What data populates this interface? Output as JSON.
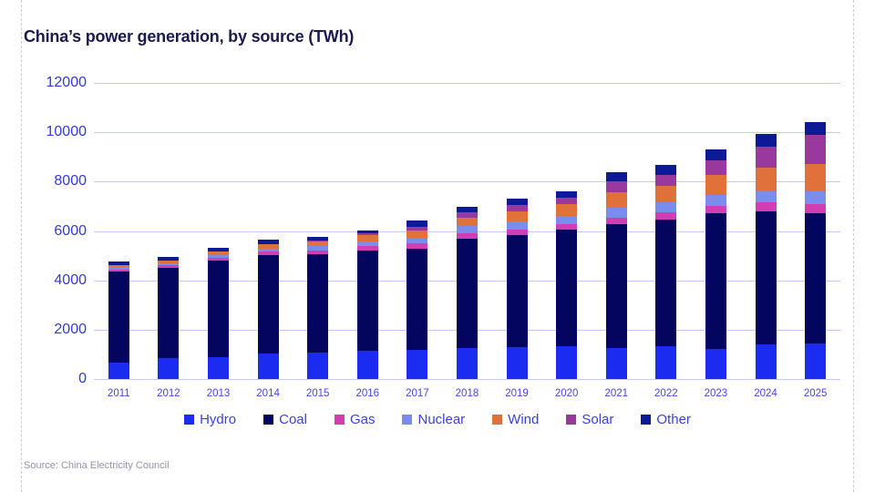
{
  "title": "China’s power generation, by source (TWh)",
  "source": {
    "text": "Source: China Electricity Council"
  },
  "colors": {
    "background": "#ffffff",
    "title_text": "#1a1a4f",
    "axis_tick_label": "#3338e0",
    "x_tick_label": "#4645e4",
    "gridline": "#c3c8f4",
    "legend_text": "#3a3fdb",
    "source_text": "#9095a5",
    "dashed_border": "#ccccd8"
  },
  "chart_data": {
    "type": "bar",
    "stacked": true,
    "title": "China’s power generation, by source (TWh)",
    "xlabel": "",
    "ylabel": "",
    "ylim": [
      0,
      12000
    ],
    "yticks": [
      0,
      2000,
      4000,
      6000,
      8000,
      10000,
      12000
    ],
    "grid": true,
    "legend_position": "bottom",
    "categories": [
      "2011",
      "2012",
      "2013",
      "2014",
      "2015",
      "2016",
      "2017",
      "2018",
      "2019",
      "2020",
      "2021",
      "2022",
      "2023",
      "2024",
      "2025"
    ],
    "series": [
      {
        "name": "Hydro",
        "color": "#1b2cf0",
        "values": [
          670,
          840,
          875,
          1035,
          1070,
          1155,
          1195,
          1255,
          1290,
          1340,
          1260,
          1320,
          1230,
          1420,
          1450
        ]
      },
      {
        "name": "Coal",
        "color": "#04055e",
        "values": [
          3670,
          3650,
          3930,
          3990,
          3975,
          4035,
          4085,
          4450,
          4545,
          4720,
          5000,
          5150,
          5480,
          5380,
          5280
        ]
      },
      {
        "name": "Gas",
        "color": "#d23db4",
        "values": [
          105,
          110,
          115,
          135,
          165,
          190,
          205,
          215,
          225,
          225,
          285,
          285,
          310,
          370,
          370
        ]
      },
      {
        "name": "Nuclear",
        "color": "#7a8dec",
        "values": [
          87,
          97,
          111,
          132,
          170,
          213,
          248,
          277,
          330,
          335,
          410,
          420,
          450,
          455,
          510
        ]
      },
      {
        "name": "Wind",
        "color": "#e0713a",
        "values": [
          75,
          100,
          140,
          160,
          185,
          240,
          305,
          345,
          405,
          455,
          615,
          645,
          790,
          950,
          1120
        ]
      },
      {
        "name": "Solar",
        "color": "#99389d",
        "values": [
          3,
          8,
          16,
          25,
          45,
          67,
          120,
          200,
          270,
          280,
          450,
          445,
          600,
          835,
          1160
        ]
      },
      {
        "name": "Other",
        "color": "#0c1a96",
        "values": [
          140,
          155,
          143,
          183,
          150,
          130,
          262,
          228,
          235,
          255,
          360,
          415,
          430,
          520,
          520
        ]
      }
    ],
    "totals": [
      4750,
      4960,
      5330,
      5660,
      5760,
      6030,
      6420,
      6970,
      7300,
      7610,
      8380,
      8680,
      9290,
      9930,
      10410
    ]
  }
}
